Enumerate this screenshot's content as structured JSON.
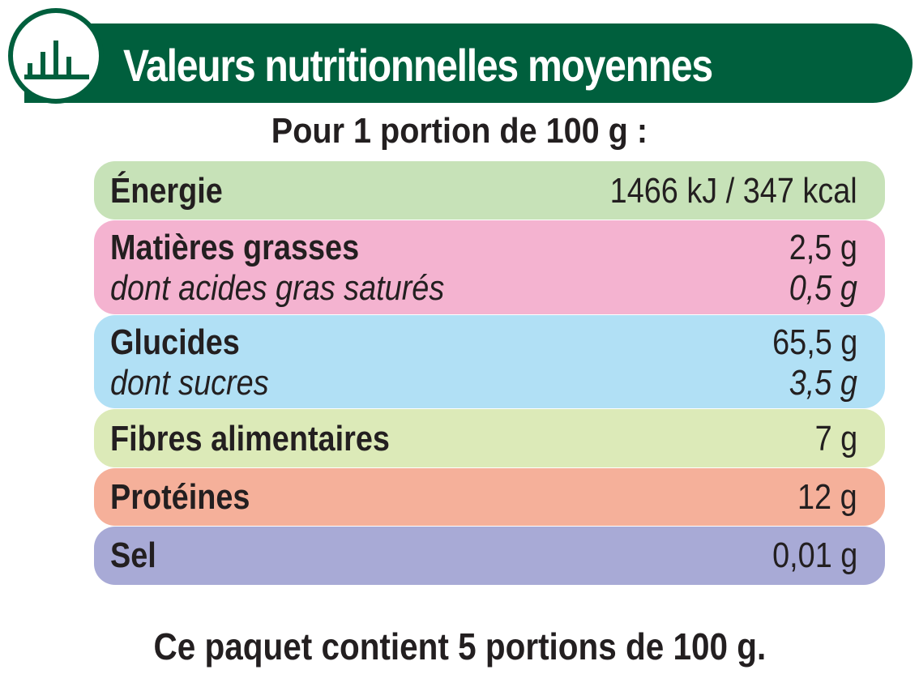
{
  "header": {
    "title": "Valeurs nutritionnelles moyennes",
    "icon": "bar-chart-icon",
    "color": "#005f3d"
  },
  "subtitle": "Pour 1 portion de 100 g :",
  "rows": [
    {
      "color": "#c7e2b8",
      "label": "Énergie",
      "value": "1466 kJ / 347 kcal"
    },
    {
      "color": "#f4b3d0",
      "label": "Matières grasses",
      "value": "2,5 g",
      "sub_label": "dont acides gras saturés",
      "sub_value": "0,5 g"
    },
    {
      "color": "#b1e0f5",
      "label": "Glucides",
      "value": "65,5 g",
      "sub_label": "dont sucres",
      "sub_value": "3,5 g"
    },
    {
      "color": "#dceab8",
      "label": "Fibres alimentaires",
      "value": "7 g"
    },
    {
      "color": "#f5b09a",
      "label": "Protéines",
      "value": "12 g"
    },
    {
      "color": "#a8aad6",
      "label": "Sel",
      "value": "0,01 g"
    }
  ],
  "footer": "Ce paquet contient 5 portions de 100 g."
}
